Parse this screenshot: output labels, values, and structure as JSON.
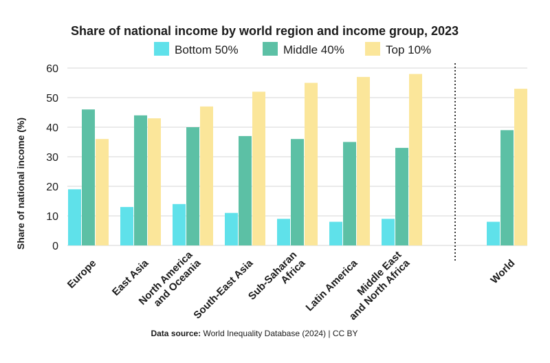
{
  "chart_data": {
    "type": "bar",
    "title": "Share of national income by world region and income group, 2023",
    "ylabel": "Share of national income (%)",
    "ylim": [
      0,
      60
    ],
    "yticks": [
      "0",
      "10",
      "20",
      "30",
      "40",
      "50",
      "60"
    ],
    "grid": true,
    "legend_position": "top",
    "categories": [
      [
        "Europe"
      ],
      [
        "East Asia"
      ],
      [
        "North America",
        "and Oceania"
      ],
      [
        "South-East Asia"
      ],
      [
        "Sub-Saharan",
        "Africa"
      ],
      [
        "Latin America"
      ],
      [
        "Middle East",
        "and North Africa"
      ],
      [
        "World"
      ]
    ],
    "series": [
      {
        "name": "Bottom 50%",
        "color": "#5fe1ea",
        "values": [
          19,
          13,
          14,
          11,
          9,
          8,
          9,
          8
        ]
      },
      {
        "name": "Middle 40%",
        "color": "#5cc0a5",
        "values": [
          46,
          44,
          40,
          37,
          36,
          35,
          33,
          39
        ]
      },
      {
        "name": "Top 10%",
        "color": "#fbe69a",
        "values": [
          36,
          43,
          47,
          52,
          55,
          57,
          58,
          53
        ]
      }
    ]
  },
  "source": {
    "label": "Data source:",
    "text": " World Inequality Database (2024) | CC BY"
  }
}
